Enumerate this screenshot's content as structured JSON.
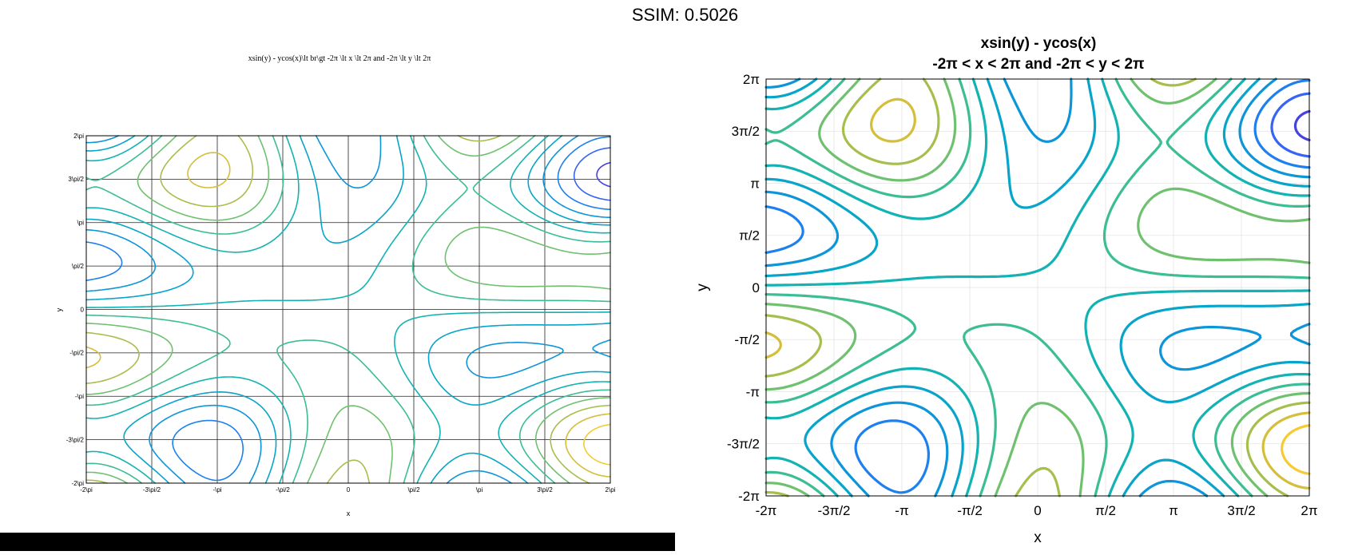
{
  "header": {
    "ssim_label": "SSIM: 0.5026"
  },
  "chart_data": [
    {
      "type": "contour",
      "panel": "left",
      "function": "x*sin(y) - y*cos(x)",
      "title": "xsin(y) - ycos(x)\\lt br\\gt -2π \\lt  x \\lt  2π and -2π \\lt  y \\lt  2π",
      "xlabel": "x",
      "ylabel": "y",
      "xlim": [
        -6.2832,
        6.2832
      ],
      "ylim": [
        -6.2832,
        6.2832
      ],
      "xticks": [
        -6.2832,
        -4.7124,
        -3.1416,
        -1.5708,
        0,
        1.5708,
        3.1416,
        4.7124,
        6.2832
      ],
      "yticks": [
        -6.2832,
        -4.7124,
        -3.1416,
        -1.5708,
        0,
        1.5708,
        3.1416,
        4.7124,
        6.2832
      ],
      "xticklabels": [
        "-2\\pi",
        "-3\\pi/2",
        "-\\pi",
        "-\\pi/2",
        "0",
        "\\pi/2",
        "\\pi",
        "3\\pi/2",
        "2\\pi"
      ],
      "yticklabels": [
        "-2\\pi",
        "-3\\pi/2",
        "-\\pi",
        "-\\pi/2",
        "0",
        "\\pi/2",
        "\\pi",
        "3\\pi/2",
        "2\\pi"
      ],
      "levels": [
        -12.5,
        -10.5,
        -8.5,
        -6.5,
        -4.5,
        -2.5,
        -0.5,
        1.5,
        3.5,
        5.5,
        7.5,
        9.5,
        11.5
      ],
      "grid": true,
      "colormap": "parula"
    },
    {
      "type": "contour",
      "panel": "right",
      "function": "x*sin(y) - y*cos(x)",
      "title": "xsin(y) - ycos(x)",
      "subtitle": "-2π < x < 2π and -2π < y < 2π",
      "xlabel": "x",
      "ylabel": "y",
      "xlim": [
        -6.2832,
        6.2832
      ],
      "ylim": [
        -6.2832,
        6.2832
      ],
      "xticks": [
        -6.2832,
        -4.7124,
        -3.1416,
        -1.5708,
        0,
        1.5708,
        3.1416,
        4.7124,
        6.2832
      ],
      "yticks": [
        -6.2832,
        -4.7124,
        -3.1416,
        -1.5708,
        0,
        1.5708,
        3.1416,
        4.7124,
        6.2832
      ],
      "xticklabels": [
        "-2π",
        "-3π/2",
        "-π",
        "-π/2",
        "0",
        "π/2",
        "π",
        "3π/2",
        "2π"
      ],
      "yticklabels": [
        "-2π",
        "-3π/2",
        "-π",
        "-π/2",
        "0",
        "π/2",
        "π",
        "3π/2",
        "2π"
      ],
      "levels": [
        -12.5,
        -10.5,
        -8.5,
        -6.5,
        -4.5,
        -2.5,
        -0.5,
        1.5,
        3.5,
        5.5,
        7.5,
        9.5,
        11.5
      ],
      "grid": true,
      "colormap": "parula"
    }
  ]
}
